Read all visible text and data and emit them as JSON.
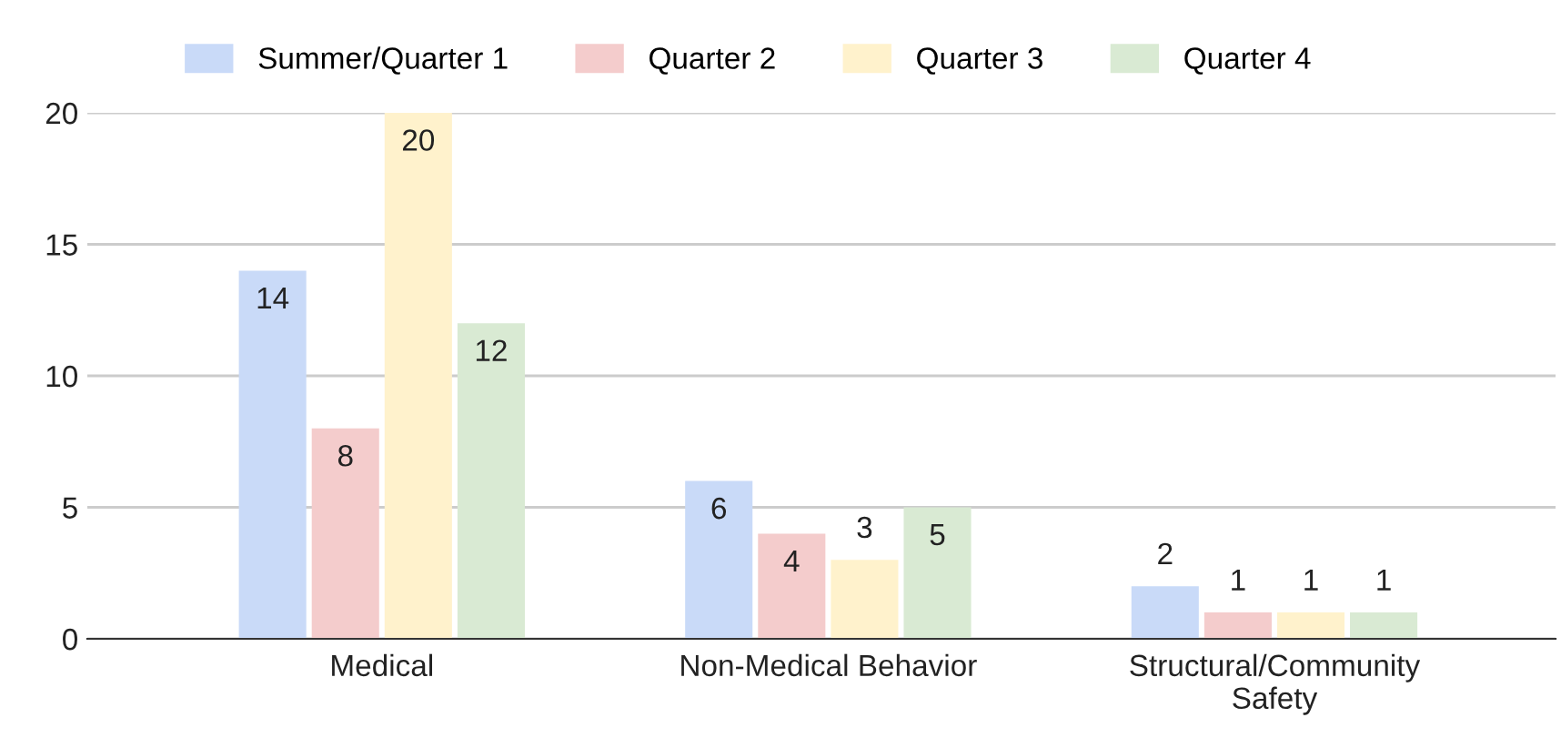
{
  "chart_data": {
    "type": "bar",
    "categories": [
      "Medical",
      "Non-Medical Behavior",
      "Structural/Community Safety"
    ],
    "series": [
      {
        "name": "Summer/Quarter 1",
        "color": "#c9daf8",
        "values": [
          14,
          6,
          2
        ]
      },
      {
        "name": "Quarter 2",
        "color": "#f4cccc",
        "values": [
          8,
          4,
          1
        ]
      },
      {
        "name": "Quarter 3",
        "color": "#fff2cc",
        "values": [
          20,
          3,
          1
        ]
      },
      {
        "name": "Quarter 4",
        "color": "#d9ead3",
        "values": [
          12,
          5,
          1
        ]
      }
    ],
    "ylim": [
      0,
      20
    ],
    "yticks": [
      0,
      5,
      10,
      15,
      20
    ],
    "grid": "y",
    "legend": "top",
    "data_labels": true
  }
}
